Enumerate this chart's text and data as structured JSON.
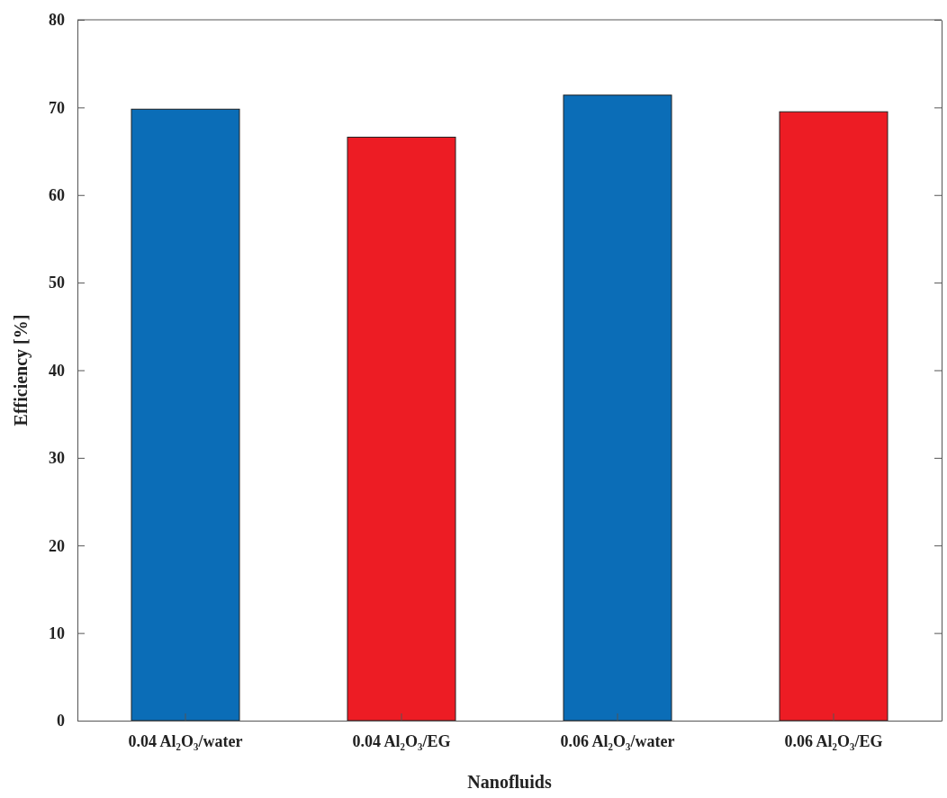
{
  "chart_data": {
    "type": "bar",
    "xlabel": "Nanofluids",
    "ylabel": "Efficiency [%]",
    "categories": [
      "0.04 Al₂O₃/water",
      "0.04 Al₂O₃/EG",
      "0.06 Al₂O₃/water",
      "0.06 Al₂O₃/EG"
    ],
    "values": [
      69.8,
      66.6,
      71.4,
      69.5
    ],
    "colors": [
      "#0b6db7",
      "#ed1c24",
      "#0b6db7",
      "#ed1c24"
    ],
    "ylim": [
      0,
      80
    ],
    "yticks": [
      0,
      10,
      20,
      30,
      40,
      50,
      60,
      70,
      80
    ],
    "grid": false
  }
}
